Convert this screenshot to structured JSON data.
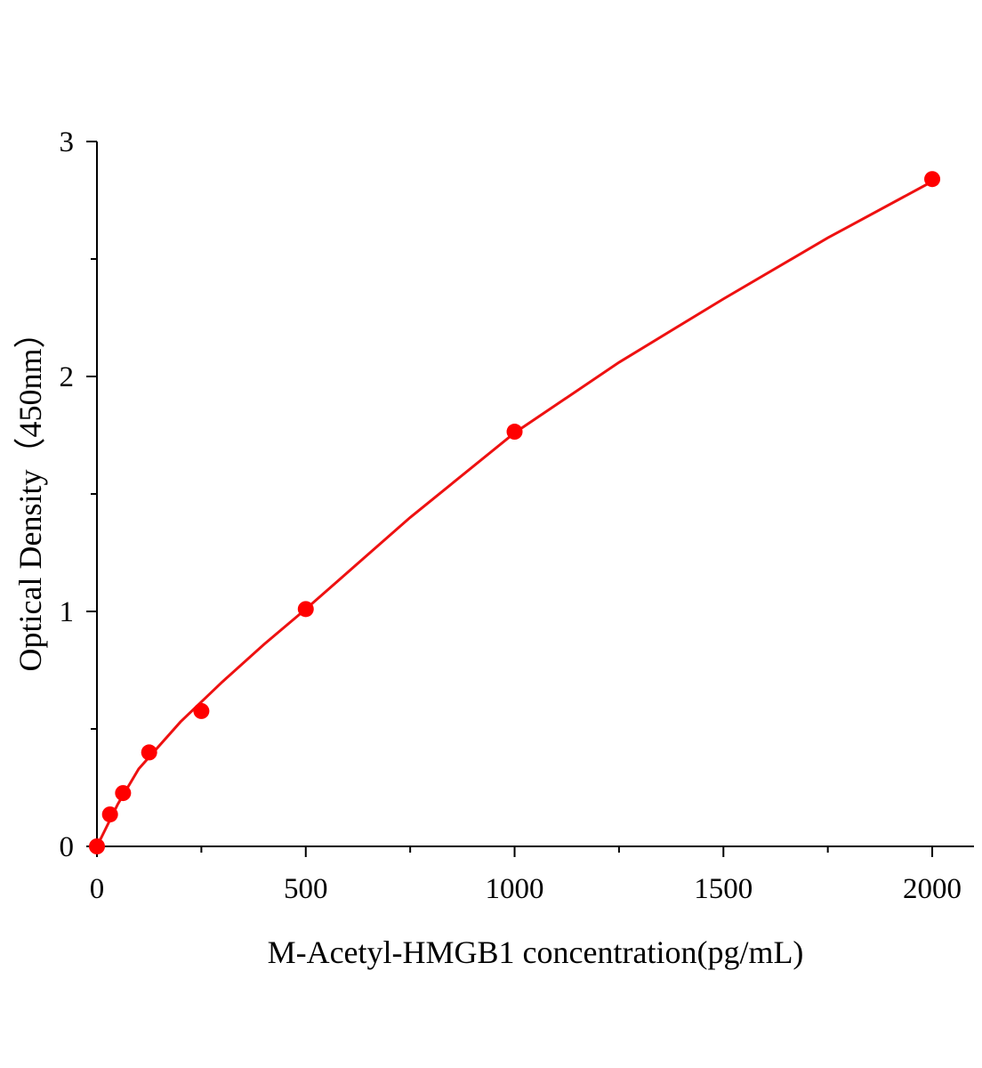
{
  "chart_data": {
    "type": "scatter",
    "x_label": "M-Acetyl-HMGB1 concentration(pg/mL)",
    "y_label": "Optical Density（450nm）",
    "x": [
      0,
      31.25,
      62.5,
      125,
      250,
      500,
      1000,
      2000
    ],
    "series": [
      {
        "color": "#ff0000",
        "values": [
          0,
          0.136,
          0.227,
          0.4,
          0.576,
          1.01,
          1.765,
          2.84
        ]
      }
    ],
    "fit": {
      "color": "#ee1111",
      "x": [
        0,
        25,
        50,
        100,
        200,
        300,
        400,
        500,
        750,
        1000,
        1250,
        1500,
        1750,
        2000
      ],
      "values": [
        0,
        0.09,
        0.18,
        0.33,
        0.53,
        0.7,
        0.86,
        1.01,
        1.4,
        1.76,
        2.06,
        2.33,
        2.59,
        2.83
      ]
    },
    "xlim": [
      0,
      2100
    ],
    "ylim": [
      0,
      3
    ],
    "xticks": [
      0,
      500,
      1000,
      1500,
      2000
    ],
    "yticks": [
      0,
      1,
      2,
      3
    ],
    "xminorticks": [
      250,
      750,
      1250,
      1750
    ],
    "yminorticks": [
      0.5,
      1.5,
      2.5
    ]
  }
}
